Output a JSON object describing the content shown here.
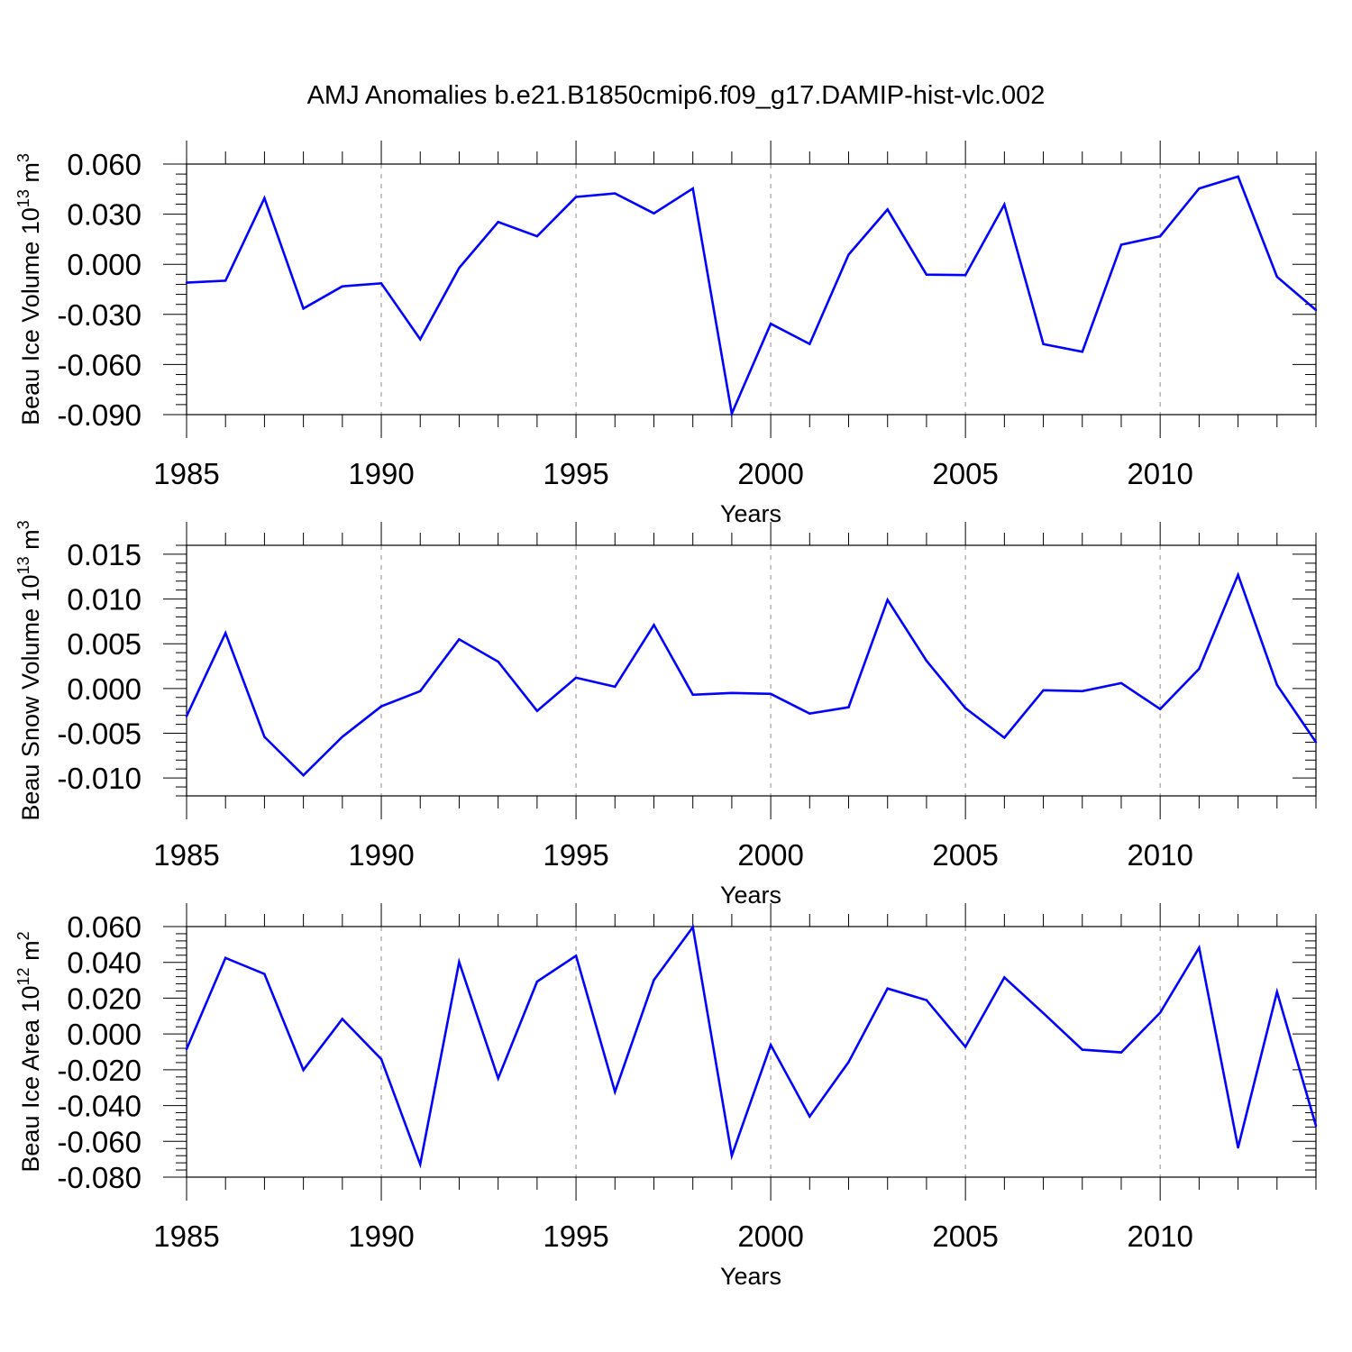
{
  "title": "AMJ Anomalies b.e21.B1850cmip6.f09_g17.DAMIP-hist-vlc.002",
  "chart_data": [
    {
      "type": "line",
      "xlabel": "Years",
      "ylabel": {
        "text": "Beau Ice Volume 10",
        "exp": "13",
        "unit": " m",
        "unit_exp": "3"
      },
      "xlim": [
        1985,
        2014
      ],
      "ylim": [
        -0.09,
        0.06
      ],
      "xticks": [
        1985,
        1990,
        1995,
        2000,
        2005,
        2010
      ],
      "xtick_labels": [
        "1985",
        "1990",
        "1995",
        "2000",
        "2005",
        "2010"
      ],
      "yticks": [
        -0.09,
        -0.06,
        -0.03,
        0.0,
        0.03,
        0.06
      ],
      "ytick_labels": [
        "-0.090",
        "-0.060",
        "-0.030",
        "0.000",
        "0.030",
        "0.060"
      ],
      "grid": "vertical-dashed",
      "line_color": "#0000ff",
      "x": [
        1985,
        1986,
        1987,
        1988,
        1989,
        1990,
        1991,
        1992,
        1993,
        1994,
        1995,
        1996,
        1997,
        1998,
        1999,
        2000,
        2001,
        2002,
        2003,
        2004,
        2005,
        2006,
        2007,
        2008,
        2009,
        2010,
        2011,
        2012,
        2013,
        2014
      ],
      "values": [
        -0.011,
        -0.0098,
        0.0396,
        -0.0265,
        -0.0132,
        -0.0114,
        -0.0449,
        -0.0022,
        0.0253,
        0.0168,
        0.0403,
        0.0424,
        0.0305,
        0.0454,
        -0.0894,
        -0.0356,
        -0.0477,
        0.0058,
        0.0328,
        -0.0062,
        -0.0065,
        0.0358,
        -0.0478,
        -0.0524,
        0.0117,
        0.0168,
        0.0454,
        0.0525,
        -0.0075,
        -0.0274
      ]
    },
    {
      "type": "line",
      "xlabel": "Years",
      "ylabel": {
        "text": "Beau Snow Volume 10",
        "exp": "13",
        "unit": " m",
        "unit_exp": "3"
      },
      "xlim": [
        1985,
        2014
      ],
      "ylim": [
        -0.012,
        0.016
      ],
      "xticks": [
        1985,
        1990,
        1995,
        2000,
        2005,
        2010
      ],
      "xtick_labels": [
        "1985",
        "1990",
        "1995",
        "2000",
        "2005",
        "2010"
      ],
      "yticks": [
        -0.01,
        -0.005,
        0.0,
        0.005,
        0.01,
        0.015
      ],
      "ytick_labels": [
        "-0.010",
        "-0.005",
        "0.000",
        "0.005",
        "0.010",
        "0.015"
      ],
      "grid": "vertical-dashed",
      "line_color": "#0000ff",
      "x": [
        1985,
        1986,
        1987,
        1988,
        1989,
        1990,
        1991,
        1992,
        1993,
        1994,
        1995,
        1996,
        1997,
        1998,
        1999,
        2000,
        2001,
        2002,
        2003,
        2004,
        2005,
        2006,
        2007,
        2008,
        2009,
        2010,
        2011,
        2012,
        2013,
        2014
      ],
      "values": [
        -0.0031,
        0.0062,
        -0.0054,
        -0.0097,
        -0.0054,
        -0.002,
        -0.0003,
        0.0055,
        0.003,
        -0.0025,
        0.0012,
        0.0002,
        0.0071,
        -0.0007,
        -0.0005,
        -0.0006,
        -0.0028,
        -0.0021,
        0.0099,
        0.0031,
        -0.0022,
        -0.0055,
        -0.0002,
        -0.0003,
        0.0006,
        -0.0023,
        0.0022,
        0.0127,
        0.0004,
        -0.006
      ]
    },
    {
      "type": "line",
      "xlabel": "Years",
      "ylabel": {
        "text": "Beau Ice Area 10",
        "exp": "12",
        "unit": " m",
        "unit_exp": "2"
      },
      "xlim": [
        1985,
        2014
      ],
      "ylim": [
        -0.08,
        0.06
      ],
      "xticks": [
        1985,
        1990,
        1995,
        2000,
        2005,
        2010
      ],
      "xtick_labels": [
        "1985",
        "1990",
        "1995",
        "2000",
        "2005",
        "2010"
      ],
      "yticks": [
        -0.08,
        -0.06,
        -0.04,
        -0.02,
        0.0,
        0.02,
        0.04,
        0.06
      ],
      "ytick_labels": [
        "-0.080",
        "-0.060",
        "-0.040",
        "-0.020",
        "0.000",
        "0.020",
        "0.040",
        "0.060"
      ],
      "grid": "vertical-dashed",
      "line_color": "#0000ff",
      "x": [
        1985,
        1986,
        1987,
        1988,
        1989,
        1990,
        1991,
        1992,
        1993,
        1994,
        1995,
        1996,
        1997,
        1998,
        1999,
        2000,
        2001,
        2002,
        2003,
        2004,
        2005,
        2006,
        2007,
        2008,
        2009,
        2010,
        2011,
        2012,
        2013,
        2014
      ],
      "values": [
        -0.0085,
        0.0425,
        0.0335,
        -0.0201,
        0.0084,
        -0.0141,
        -0.0728,
        0.0402,
        -0.0248,
        0.0293,
        0.0437,
        -0.0323,
        0.0302,
        0.0597,
        -0.068,
        -0.0061,
        -0.0461,
        -0.0157,
        0.0254,
        0.0189,
        -0.0072,
        0.0316,
        0.0116,
        -0.0088,
        -0.0103,
        0.0119,
        0.0482,
        -0.0635,
        0.0235,
        -0.0513
      ]
    }
  ]
}
